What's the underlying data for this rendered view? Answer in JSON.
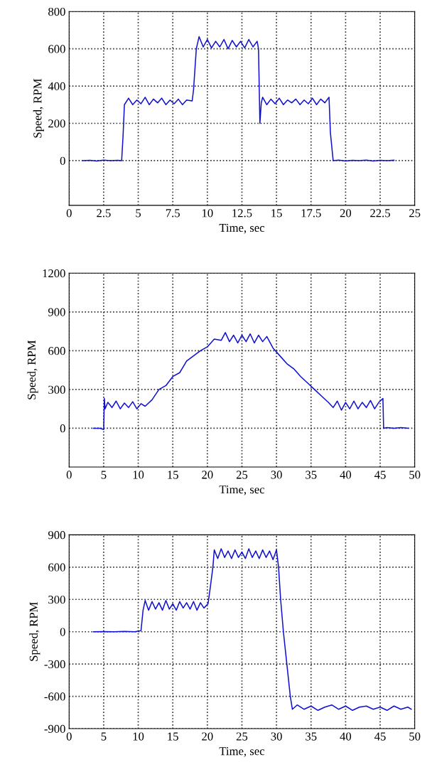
{
  "chart_data": [
    {
      "type": "line",
      "xlabel": "Time, sec",
      "ylabel": "Speed, RPM",
      "xlim": [
        0,
        25
      ],
      "ylim": [
        -240,
        800
      ],
      "xticks": [
        0,
        2.5,
        5,
        7.5,
        10,
        12.5,
        15,
        17.5,
        20,
        22.5,
        25
      ],
      "yticks": [
        0,
        200,
        400,
        600,
        800
      ],
      "grid": true,
      "series": [
        {
          "color": "#1010d0",
          "x": [
            1.0,
            1.5,
            2.0,
            2.5,
            3.0,
            3.5,
            3.8,
            3.9,
            4.0,
            4.3,
            4.6,
            4.9,
            5.2,
            5.5,
            5.8,
            6.1,
            6.4,
            6.7,
            7.0,
            7.3,
            7.6,
            7.9,
            8.2,
            8.5,
            8.9,
            9.0,
            9.2,
            9.4,
            9.7,
            10.0,
            10.3,
            10.6,
            10.9,
            11.2,
            11.5,
            11.8,
            12.1,
            12.4,
            12.7,
            13.0,
            13.3,
            13.6,
            13.7,
            13.8,
            13.9,
            14.0,
            14.3,
            14.6,
            14.9,
            15.2,
            15.5,
            15.8,
            16.1,
            16.4,
            16.7,
            17.0,
            17.3,
            17.6,
            17.9,
            18.2,
            18.5,
            18.8,
            18.9,
            19.1,
            19.5,
            20.0,
            20.5,
            21.0,
            21.5,
            22.0,
            22.5,
            23.0,
            23.5
          ],
          "values": [
            0,
            2,
            -2,
            3,
            0,
            2,
            0,
            130,
            300,
            335,
            300,
            325,
            305,
            340,
            300,
            330,
            310,
            335,
            300,
            325,
            305,
            330,
            300,
            325,
            320,
            380,
            600,
            665,
            610,
            650,
            605,
            640,
            610,
            650,
            600,
            645,
            610,
            640,
            605,
            650,
            610,
            640,
            600,
            200,
            310,
            340,
            300,
            330,
            305,
            335,
            300,
            325,
            310,
            330,
            300,
            325,
            305,
            335,
            300,
            330,
            310,
            340,
            150,
            0,
            3,
            -2,
            2,
            0,
            3,
            -2,
            2,
            0,
            2
          ]
        }
      ]
    },
    {
      "type": "line",
      "xlabel": "Time, sec",
      "ylabel": "Speed, RPM",
      "xlim": [
        0,
        50
      ],
      "ylim": [
        -300,
        1200
      ],
      "xticks": [
        0,
        5,
        10,
        15,
        20,
        25,
        30,
        35,
        40,
        45,
        50
      ],
      "yticks": [
        0,
        300,
        600,
        900,
        1200
      ],
      "grid": true,
      "series": [
        {
          "color": "#1010d0",
          "x": [
            3.5,
            4.5,
            5.0,
            5.1,
            5.2,
            5.6,
            6.2,
            6.8,
            7.4,
            8.0,
            8.6,
            9.2,
            9.8,
            10.4,
            11.0,
            12.0,
            13.0,
            14.0,
            15.0,
            16.0,
            17.0,
            18.0,
            19.0,
            20.0,
            21.0,
            22.0,
            22.6,
            23.2,
            23.8,
            24.4,
            25.0,
            25.6,
            26.2,
            26.8,
            27.4,
            28.0,
            28.6,
            29.5,
            30.5,
            31.5,
            32.5,
            33.5,
            34.5,
            35.5,
            36.5,
            37.5,
            38.2,
            38.8,
            39.4,
            40.0,
            40.6,
            41.2,
            41.8,
            42.4,
            43.0,
            43.6,
            44.2,
            44.8,
            45.4,
            45.5,
            46.0,
            47.0,
            48.0,
            49.0
          ],
          "values": [
            0,
            0,
            -10,
            230,
            150,
            200,
            160,
            210,
            150,
            195,
            160,
            205,
            150,
            190,
            170,
            220,
            300,
            330,
            400,
            430,
            520,
            560,
            600,
            630,
            690,
            680,
            740,
            670,
            720,
            660,
            720,
            670,
            730,
            660,
            720,
            670,
            710,
            620,
            560,
            500,
            460,
            400,
            350,
            300,
            250,
            200,
            160,
            210,
            140,
            200,
            150,
            210,
            150,
            200,
            160,
            215,
            150,
            200,
            230,
            0,
            5,
            0,
            5,
            0
          ]
        }
      ]
    },
    {
      "type": "line",
      "xlabel": "Time, sec",
      "ylabel": "Speed, RPM",
      "xlim": [
        0,
        50
      ],
      "ylim": [
        -900,
        900
      ],
      "xticks": [
        0,
        5,
        10,
        15,
        20,
        25,
        30,
        35,
        40,
        45,
        50
      ],
      "yticks": [
        -900,
        -600,
        -300,
        0,
        300,
        600,
        900
      ],
      "grid": true,
      "series": [
        {
          "color": "#1010d0",
          "x": [
            3.5,
            5.0,
            6.5,
            8.0,
            9.5,
            10.4,
            10.7,
            11.0,
            11.5,
            12.0,
            12.5,
            13.0,
            13.5,
            14.0,
            14.5,
            15.0,
            15.5,
            16.0,
            16.5,
            17.0,
            17.5,
            18.0,
            18.5,
            19.0,
            19.5,
            20.1,
            20.4,
            20.8,
            21.0,
            21.5,
            22.0,
            22.5,
            23.0,
            23.5,
            24.0,
            24.5,
            25.0,
            25.5,
            26.0,
            26.5,
            27.0,
            27.5,
            28.0,
            28.5,
            29.0,
            29.5,
            30.0,
            30.3,
            30.6,
            31.0,
            31.5,
            32.0,
            32.3,
            33.0,
            34.0,
            35.0,
            36.0,
            37.0,
            38.0,
            39.0,
            40.0,
            41.0,
            42.0,
            43.0,
            44.0,
            45.0,
            46.0,
            47.0,
            48.0,
            49.0,
            49.5
          ],
          "values": [
            0,
            2,
            0,
            3,
            0,
            10,
            200,
            290,
            200,
            280,
            210,
            270,
            200,
            290,
            210,
            260,
            200,
            280,
            220,
            270,
            210,
            280,
            200,
            270,
            220,
            260,
            400,
            600,
            760,
            680,
            770,
            690,
            750,
            680,
            760,
            690,
            740,
            680,
            770,
            690,
            750,
            680,
            760,
            690,
            750,
            670,
            760,
            600,
            300,
            0,
            -300,
            -600,
            -720,
            -680,
            -720,
            -690,
            -730,
            -700,
            -680,
            -720,
            -690,
            -730,
            -700,
            -690,
            -720,
            -700,
            -730,
            -690,
            -720,
            -700,
            -720
          ]
        }
      ]
    }
  ]
}
